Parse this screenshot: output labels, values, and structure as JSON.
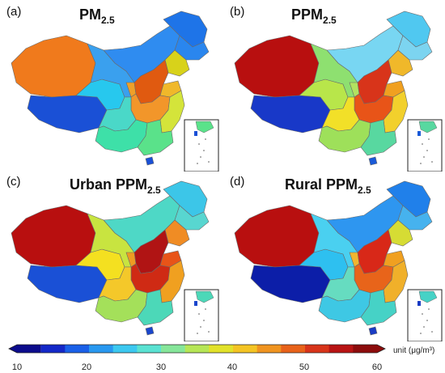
{
  "panels": [
    {
      "letter": "(a)",
      "title_main": "PM",
      "title_sub": "2.5",
      "colors": {
        "xinjiang": "#f07a1c",
        "tibet": "#1a50d6",
        "qinghai": "#27c8ee",
        "gansu": "#3aa0ee",
        "inner_mongolia": "#2f8cf0",
        "heilongjiang": "#1e74e8",
        "jilin": "#2a86ee",
        "liaoning": "#d8d21a",
        "north_china": "#e05a10",
        "central": "#f2962a",
        "shandong": "#f0b82a",
        "sichuan": "#4ad8c8",
        "southwest": "#3ee0a8",
        "south": "#5ae28a",
        "east": "#d4e43a",
        "ningxia": "#efa028",
        "hainan": "#1a50d6"
      }
    },
    {
      "letter": "(b)",
      "title_main": "PPM",
      "title_sub": "2.5",
      "colors": {
        "xinjiang": "#b80f0f",
        "tibet": "#1838c8",
        "qinghai": "#b8e64a",
        "gansu": "#8ee070",
        "inner_mongolia": "#78d6f2",
        "heilongjiang": "#50c8f0",
        "jilin": "#7cd4f0",
        "liaoning": "#f0b82a",
        "north_china": "#d8341a",
        "central": "#e85418",
        "shandong": "#f0a020",
        "sichuan": "#f2e028",
        "southwest": "#9ee05a",
        "south": "#58d8a0",
        "east": "#f2d02c",
        "ningxia": "#b2e260",
        "hainan": "#1a5ad8"
      }
    },
    {
      "letter": "(c)",
      "title_main": "Urban PPM",
      "title_sub": "2.5",
      "colors": {
        "xinjiang": "#b80f0f",
        "tibet": "#1a50d6",
        "qinghai": "#f4e020",
        "gansu": "#c8e440",
        "inner_mongolia": "#4ed8c6",
        "heilongjiang": "#3cc6e8",
        "jilin": "#58d6d0",
        "liaoning": "#f08c24",
        "north_china": "#b01414",
        "central": "#cf2a14",
        "shandong": "#e85418",
        "sichuan": "#f4c82a",
        "southwest": "#a4e05a",
        "south": "#4cd8b8",
        "east": "#f0a020",
        "ningxia": "#ee9a22",
        "hainan": "#1a46cc"
      }
    },
    {
      "letter": "(d)",
      "title_main": "Rural PPM",
      "title_sub": "2.5",
      "colors": {
        "xinjiang": "#b80f0f",
        "tibet": "#0c1ea8",
        "qinghai": "#2ec0f0",
        "gansu": "#4ad0f0",
        "inner_mongolia": "#2e96f0",
        "heilongjiang": "#2080ea",
        "jilin": "#46b2ee",
        "liaoning": "#d6dc34",
        "north_china": "#d82818",
        "central": "#e8641a",
        "shandong": "#f0a020",
        "sichuan": "#66dcc0",
        "southwest": "#3ec8e4",
        "south": "#46d2c6",
        "east": "#f0b02a",
        "ningxia": "#f0b630",
        "hainan": "#1a3cc4"
      }
    }
  ],
  "colorbar": {
    "ticks": [
      "10",
      "20",
      "30",
      "40",
      "50",
      "60"
    ],
    "unit": "unit (μg/m³)",
    "colors": [
      "#0c0c8c",
      "#1428c8",
      "#1a60e8",
      "#2898f0",
      "#3cc8f0",
      "#5ae2d2",
      "#86e69a",
      "#b6e656",
      "#e2e22a",
      "#f4c424",
      "#f09420",
      "#e8621a",
      "#d8341a",
      "#b81414",
      "#8c0c0c"
    ]
  }
}
